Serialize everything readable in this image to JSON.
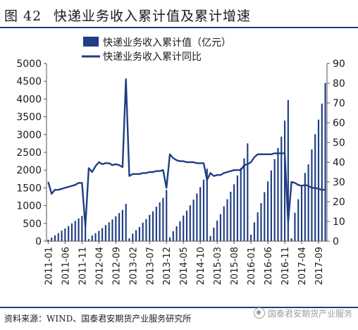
{
  "header": {
    "figure_no": "图 42",
    "title": "快递业务收入累计值及累计增速"
  },
  "footer": {
    "source": "资料来源：WIND、国泰君安期货产业服务研究所",
    "watermark": "国泰君安期货产业服务"
  },
  "colors": {
    "bar": "#1f3e83",
    "line": "#1f3e83",
    "rule": "#1f3e83",
    "axis": "#555555"
  },
  "chart_data": {
    "type": "bar",
    "legend_position": "top-left",
    "grid": false,
    "y_left": {
      "min": 0,
      "max": 5000,
      "ticks": [
        "0",
        "500",
        "1000",
        "1500",
        "2000",
        "2500",
        "3000",
        "3500",
        "4000",
        "4500",
        "5000"
      ]
    },
    "y_right": {
      "min": 0,
      "max": 90,
      "ticks": [
        "0",
        "10",
        "20",
        "30",
        "40",
        "50",
        "60",
        "70",
        "80",
        "90"
      ]
    },
    "x_tick_labels": [
      "2011-01",
      "2011-06",
      "2011-11",
      "2012-04",
      "2012-09",
      "2013-02",
      "2013-07",
      "2013-12",
      "2014-05",
      "2014-10",
      "2015-03",
      "2015-08",
      "2016-01",
      "2016-06",
      "2016-11",
      "2017-04",
      "2017-09"
    ],
    "x_tick_index": [
      0,
      5,
      10,
      15,
      20,
      25,
      30,
      35,
      40,
      45,
      50,
      55,
      60,
      65,
      70,
      75,
      80
    ],
    "series": [
      {
        "name": "快递业务收入累计值（亿元）",
        "type": "bar",
        "axis": "left",
        "x_start": "2011-01",
        "values": [
          40,
          100,
          165,
          225,
          295,
          355,
          425,
          500,
          570,
          640,
          710,
          750,
          60,
          160,
          225,
          290,
          370,
          450,
          530,
          610,
          700,
          790,
          880,
          1050,
          80,
          210,
          310,
          400,
          520,
          620,
          740,
          840,
          970,
          1090,
          1220,
          1440,
          110,
          280,
          420,
          560,
          720,
          860,
          1010,
          1170,
          1340,
          1520,
          1730,
          2040,
          145,
          380,
          580,
          760,
          980,
          1180,
          1390,
          1600,
          1850,
          2060,
          2330,
          2750,
          180,
          530,
          810,
          1070,
          1380,
          1680,
          1990,
          2310,
          2620,
          2940,
          3390,
          3970,
          80,
          800,
          1180,
          1540,
          1920,
          2160,
          2580,
          3010,
          3420,
          3870,
          4450
        ]
      },
      {
        "name": "快递业务收入累计同比",
        "type": "line",
        "axis": "right",
        "x_start": "2011-01",
        "values": [
          30,
          24,
          26,
          26,
          26.5,
          27,
          27.5,
          28,
          28.5,
          29.5,
          29.5,
          7.5,
          37,
          35,
          38,
          40,
          39,
          39.5,
          39.5,
          38.5,
          39,
          38.5,
          37.5,
          82,
          33,
          34,
          34,
          34,
          34.5,
          34.5,
          35,
          35,
          35.5,
          35.5,
          36,
          27,
          44,
          42,
          41,
          40.5,
          40.5,
          40,
          40,
          40,
          39.5,
          39.5,
          39.5,
          31,
          34.5,
          33,
          33.5,
          33.5,
          34.5,
          35,
          35.5,
          36,
          36,
          36,
          38.5,
          39,
          40,
          42.5,
          44,
          44,
          44,
          44,
          44,
          44.5,
          44.5,
          44.5,
          44.5,
          9.5,
          30,
          29.5,
          28.5,
          28,
          28.5,
          28,
          27,
          27,
          26.5,
          26,
          26
        ]
      }
    ]
  }
}
